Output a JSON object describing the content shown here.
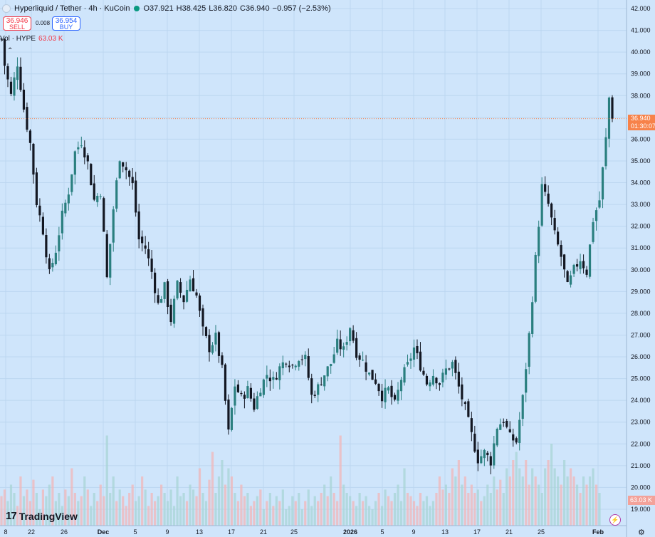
{
  "header": {
    "title": "Hyperliquid / Tether · 4h · KuCoin",
    "ohlc": [
      {
        "k": "O",
        "v": "37.921"
      },
      {
        "k": "H",
        "v": "38.425"
      },
      {
        "k": "L",
        "v": "36.820"
      },
      {
        "k": "C",
        "v": "36.940"
      },
      {
        "k": "",
        "v": "−0.957 (−2.53%)"
      }
    ]
  },
  "trade": {
    "sell_price": "36.946",
    "sell_label": "SELL",
    "spread": "0.008",
    "buy_price": "36.954",
    "buy_label": "BUY"
  },
  "volume_legend": {
    "label": "Vol · HYPE",
    "value": "63.03 K"
  },
  "last_price_label": {
    "price": "36.940",
    "countdown": "01:30:07"
  },
  "volume_label": "63.03 K",
  "brand": "TradingView",
  "colors": {
    "background": "#cfe5fb",
    "up": "#2a7f7f",
    "down": "#131722",
    "vol_up": "#a8d4d6",
    "vol_down": "#f1b5b8",
    "price_line": "#f7824a"
  },
  "chart_data": {
    "type": "candlestick",
    "timeframe": "4h",
    "y_axis": {
      "min": 19.0,
      "max": 42.0,
      "step": 1.0,
      "position": "right",
      "tick_labels": [
        "19.000",
        "20.000",
        "21.000",
        "22.000",
        "23.000",
        "24.000",
        "25.000",
        "26.000",
        "27.000",
        "28.000",
        "29.000",
        "30.000",
        "31.000",
        "32.000",
        "33.000",
        "34.000",
        "35.000",
        "36.000",
        "37.000",
        "38.000",
        "39.000",
        "40.000",
        "41.000",
        "42.000"
      ]
    },
    "x_axis": {
      "tick_labels": [
        "8",
        "22",
        "26",
        "Dec",
        "5",
        "9",
        "13",
        "17",
        "21",
        "25",
        "2026",
        "5",
        "9",
        "13",
        "17",
        "21",
        "25",
        "Feb"
      ],
      "bold": [
        "Dec",
        "2026",
        "Feb"
      ]
    },
    "grid": true,
    "last_price": 36.94,
    "price_path": [
      [
        0,
        40.6
      ],
      [
        1,
        39.4
      ],
      [
        3,
        38.0
      ],
      [
        5,
        39.5
      ],
      [
        7,
        37.4
      ],
      [
        9,
        35.8
      ],
      [
        11,
        33.1
      ],
      [
        13,
        31.8
      ],
      [
        15,
        29.8
      ],
      [
        17,
        30.9
      ],
      [
        19,
        32.5
      ],
      [
        21,
        33.6
      ],
      [
        23,
        35.4
      ],
      [
        25,
        35.9
      ],
      [
        27,
        34.9
      ],
      [
        29,
        33.2
      ],
      [
        31,
        33.6
      ],
      [
        33,
        29.6
      ],
      [
        35,
        32.8
      ],
      [
        37,
        35.2
      ],
      [
        39,
        34.6
      ],
      [
        41,
        33.9
      ],
      [
        43,
        31.4
      ],
      [
        45,
        31.0
      ],
      [
        47,
        29.9
      ],
      [
        49,
        28.4
      ],
      [
        51,
        29.2
      ],
      [
        53,
        27.7
      ],
      [
        55,
        29.3
      ],
      [
        57,
        28.6
      ],
      [
        59,
        29.6
      ],
      [
        61,
        28.8
      ],
      [
        63,
        27.2
      ],
      [
        65,
        26.4
      ],
      [
        67,
        26.9
      ],
      [
        69,
        25.4
      ],
      [
        71,
        22.5
      ],
      [
        73,
        24.7
      ],
      [
        75,
        24.1
      ],
      [
        77,
        24.5
      ],
      [
        79,
        23.7
      ],
      [
        81,
        24.6
      ],
      [
        83,
        25.2
      ],
      [
        85,
        24.9
      ],
      [
        87,
        25.5
      ],
      [
        89,
        25.9
      ],
      [
        91,
        25.6
      ],
      [
        93,
        26.0
      ],
      [
        95,
        25.9
      ],
      [
        97,
        24.2
      ],
      [
        99,
        24.6
      ],
      [
        101,
        25.2
      ],
      [
        103,
        25.7
      ],
      [
        105,
        26.6
      ],
      [
        107,
        26.3
      ],
      [
        109,
        27.4
      ],
      [
        111,
        26.2
      ],
      [
        113,
        25.8
      ],
      [
        115,
        25.2
      ],
      [
        117,
        24.9
      ],
      [
        119,
        24.2
      ],
      [
        121,
        24.5
      ],
      [
        123,
        23.8
      ],
      [
        125,
        25.0
      ],
      [
        127,
        25.6
      ],
      [
        129,
        26.4
      ],
      [
        131,
        25.6
      ],
      [
        133,
        24.8
      ],
      [
        135,
        25.2
      ],
      [
        137,
        24.8
      ],
      [
        139,
        25.4
      ],
      [
        141,
        25.7
      ],
      [
        143,
        24.6
      ],
      [
        145,
        23.6
      ],
      [
        147,
        22.4
      ],
      [
        149,
        21.3
      ],
      [
        151,
        21.6
      ],
      [
        153,
        21.2
      ],
      [
        155,
        22.8
      ],
      [
        157,
        23.1
      ],
      [
        159,
        22.3
      ],
      [
        161,
        22.1
      ],
      [
        163,
        24.1
      ],
      [
        165,
        27.0
      ],
      [
        167,
        30.5
      ],
      [
        169,
        33.8
      ],
      [
        171,
        33.0
      ],
      [
        173,
        31.6
      ],
      [
        175,
        30.6
      ],
      [
        177,
        29.2
      ],
      [
        179,
        30.0
      ],
      [
        181,
        30.5
      ],
      [
        183,
        29.9
      ],
      [
        185,
        32.3
      ],
      [
        187,
        33.2
      ],
      [
        189,
        36.0
      ],
      [
        190,
        37.9
      ],
      [
        191,
        36.94
      ]
    ],
    "volume_profile": [
      0.18,
      0.22,
      0.15,
      0.25,
      0.2,
      0.12,
      0.3,
      0.18,
      0.22,
      0.15,
      0.28,
      0.2,
      0.1,
      0.22,
      0.18,
      0.25,
      0.3,
      0.15,
      0.2,
      0.12,
      0.22,
      0.18,
      0.35,
      0.2,
      0.15,
      0.18,
      0.3,
      0.22,
      0.12,
      0.2,
      0.15,
      0.25,
      0.18,
      0.55,
      0.2,
      0.3,
      0.15,
      0.22,
      0.18,
      0.12,
      0.2,
      0.25,
      0.15,
      0.18,
      0.3,
      0.22,
      0.12,
      0.2,
      0.15,
      0.18,
      0.25,
      0.2,
      0.15,
      0.22,
      0.12,
      0.3,
      0.18,
      0.2,
      0.15,
      0.25,
      0.22,
      0.18,
      0.35,
      0.2,
      0.15,
      0.28,
      0.45,
      0.2,
      0.3,
      0.4,
      0.25,
      0.35,
      0.3,
      0.2,
      0.15,
      0.25,
      0.18,
      0.2,
      0.12,
      0.15,
      0.18,
      0.22,
      0.1,
      0.15,
      0.2,
      0.12,
      0.18,
      0.15,
      0.22,
      0.1,
      0.12,
      0.18,
      0.15,
      0.2,
      0.1,
      0.15,
      0.22,
      0.12,
      0.18,
      0.15,
      0.2,
      0.25,
      0.18,
      0.3,
      0.2,
      0.15,
      0.55,
      0.25,
      0.2,
      0.18,
      0.15,
      0.12,
      0.2,
      0.15,
      0.18,
      0.12,
      0.1,
      0.15,
      0.2,
      0.12,
      0.22,
      0.18,
      0.15,
      0.2,
      0.25,
      0.15,
      0.35,
      0.2,
      0.18,
      0.15,
      0.12,
      0.2,
      0.15,
      0.18,
      0.12,
      0.15,
      0.2,
      0.3,
      0.22,
      0.25,
      0.2,
      0.35,
      0.3,
      0.4,
      0.25,
      0.3,
      0.2,
      0.25,
      0.2,
      0.22,
      0.15,
      0.18,
      0.25,
      0.2,
      0.3,
      0.22,
      0.28,
      0.2,
      0.35,
      0.3,
      0.4,
      0.45,
      0.35,
      0.3,
      0.4,
      0.25,
      0.35,
      0.3,
      0.25,
      0.2,
      0.35,
      0.4,
      0.5,
      0.35,
      0.3,
      0.25,
      0.4,
      0.3,
      0.35,
      0.3,
      0.25,
      0.2,
      0.3,
      0.25,
      0.3,
      0.35,
      0.25,
      0.2
    ]
  }
}
